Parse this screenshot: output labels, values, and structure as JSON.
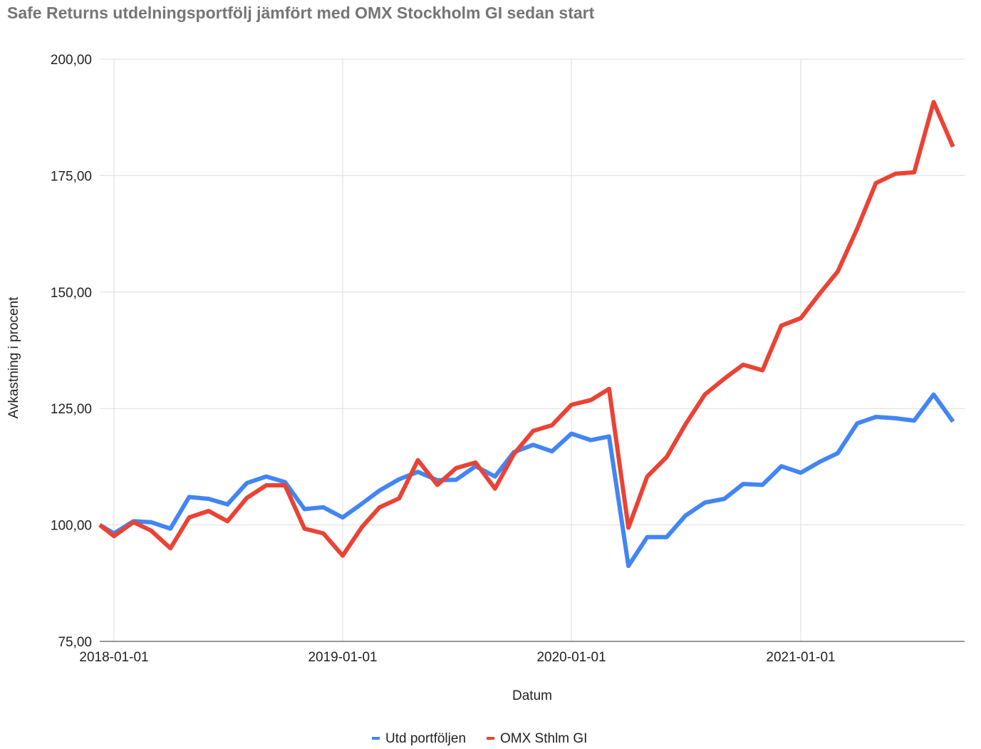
{
  "chart_data": {
    "type": "line",
    "title": "Safe Returns utdelningsportfölj jämfört med OMX Stockholm GI sedan start",
    "xlabel": "Datum",
    "ylabel": "Avkastning i procent",
    "ylim": [
      75,
      200
    ],
    "yticks": [
      "75,00",
      "100,00",
      "125,00",
      "150,00",
      "175,00",
      "200,00"
    ],
    "xticks": [
      "2018-01-01",
      "2019-01-01",
      "2020-01-01",
      "2021-01-01"
    ],
    "grid": true,
    "legend": "bottom",
    "x": [
      "2017-12-01",
      "2018-01-01",
      "2018-02-01",
      "2018-03-01",
      "2018-04-01",
      "2018-05-01",
      "2018-06-01",
      "2018-07-01",
      "2018-08-01",
      "2018-09-01",
      "2018-10-01",
      "2018-11-01",
      "2018-12-01",
      "2019-01-01",
      "2019-02-01",
      "2019-03-01",
      "2019-04-01",
      "2019-05-01",
      "2019-06-01",
      "2019-07-01",
      "2019-08-01",
      "2019-09-01",
      "2019-10-01",
      "2019-11-01",
      "2019-12-01",
      "2020-01-01",
      "2020-02-01",
      "2020-03-01",
      "2020-04-01",
      "2020-05-01",
      "2020-06-01",
      "2020-07-01",
      "2020-08-01",
      "2020-09-01",
      "2020-10-01",
      "2020-11-01",
      "2020-12-01",
      "2021-01-01",
      "2021-02-01",
      "2021-03-01",
      "2021-04-01",
      "2021-05-01",
      "2021-06-01",
      "2021-07-01",
      "2021-08-01",
      "2021-09-01"
    ],
    "series": [
      {
        "name": "Utd portföljen",
        "color": "#4285f4",
        "values": [
          100.0,
          98.2,
          100.8,
          100.6,
          99.2,
          106.0,
          105.6,
          104.4,
          109.0,
          110.4,
          109.2,
          103.4,
          103.8,
          101.6,
          104.6,
          107.4,
          109.8,
          111.4,
          109.6,
          109.7,
          112.6,
          110.4,
          115.6,
          117.2,
          115.8,
          119.6,
          118.2,
          119.0,
          91.2,
          97.4,
          97.4,
          102.0,
          104.8,
          105.6,
          108.8,
          108.6,
          112.6,
          111.2,
          113.6,
          115.4,
          121.8,
          123.2,
          122.9,
          122.4,
          128.0,
          122.2
        ]
      },
      {
        "name": "OMX Sthlm GI",
        "color": "#ea4335",
        "values": [
          100.0,
          97.6,
          100.6,
          98.8,
          95.0,
          101.6,
          103.0,
          100.8,
          105.8,
          108.5,
          108.5,
          99.2,
          98.2,
          93.4,
          99.6,
          103.8,
          105.7,
          113.9,
          108.6,
          112.2,
          113.4,
          107.8,
          115.2,
          120.2,
          121.4,
          125.8,
          126.8,
          129.2,
          99.4,
          110.4,
          114.6,
          121.6,
          128.0,
          131.4,
          134.4,
          133.2,
          142.8,
          144.4,
          149.8,
          154.4,
          163.6,
          173.4,
          175.4,
          175.7,
          190.8,
          181.2
        ]
      }
    ]
  }
}
